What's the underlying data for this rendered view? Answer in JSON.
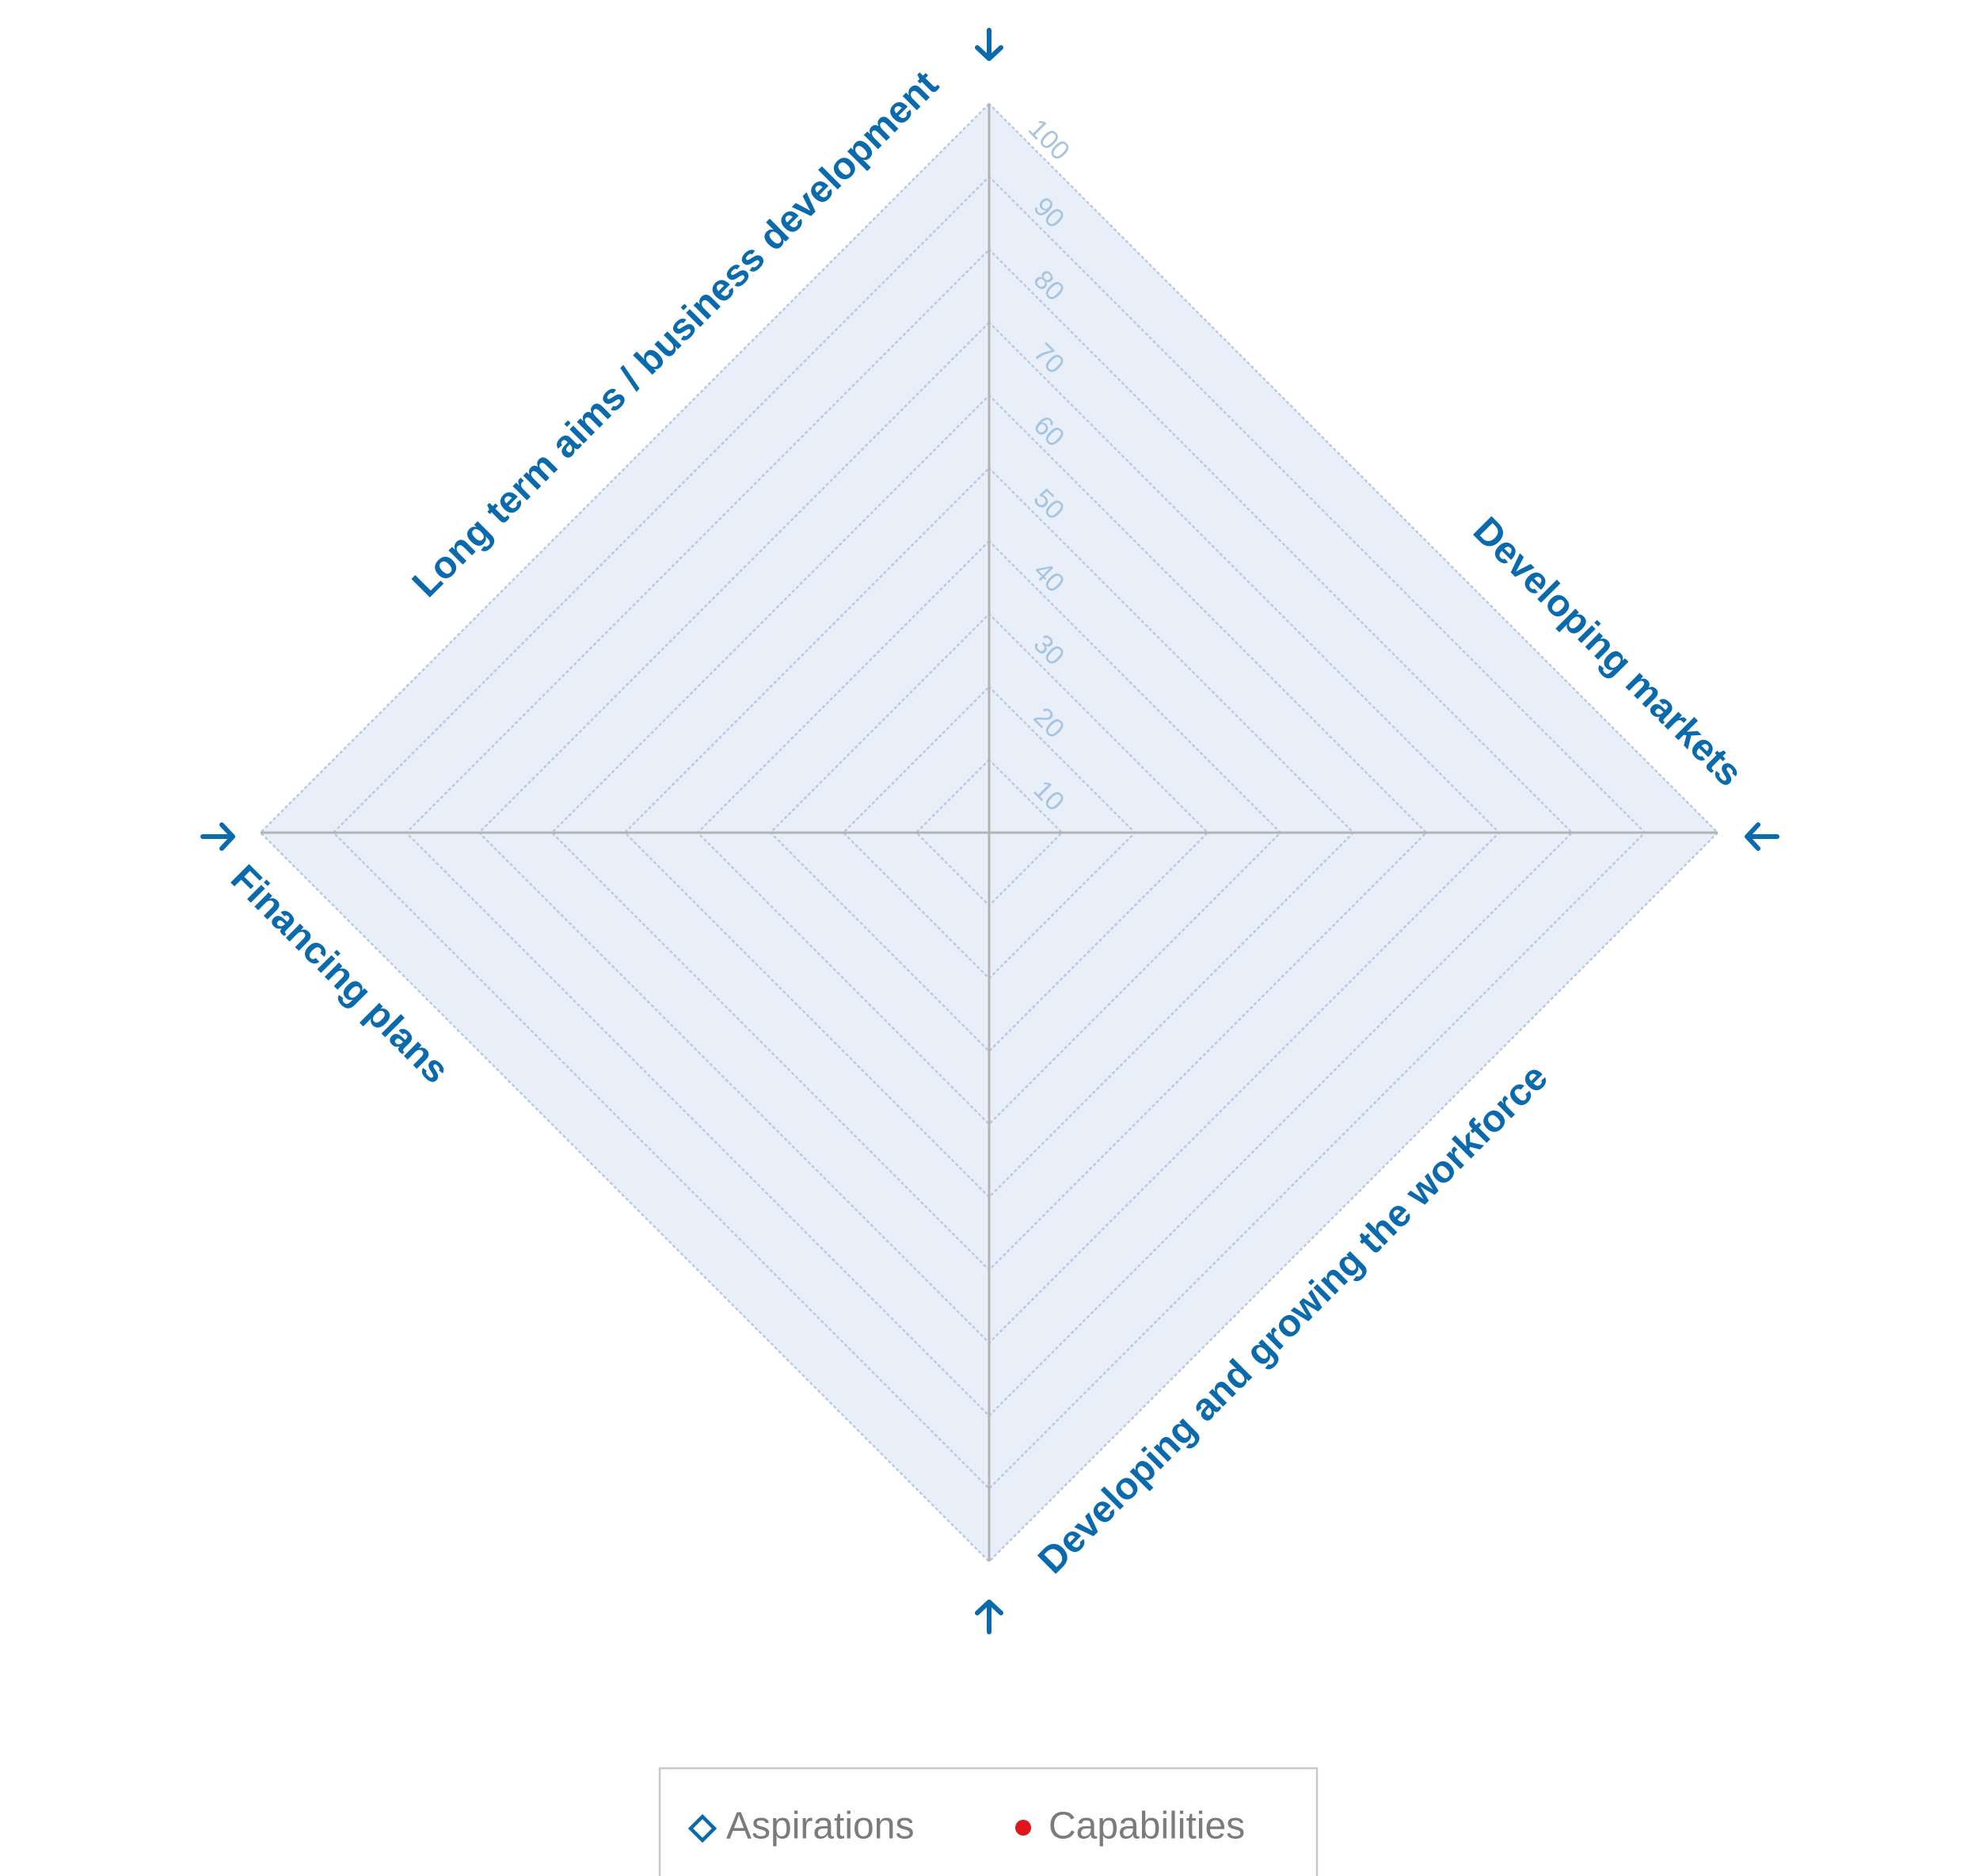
{
  "chart_data": {
    "type": "radar",
    "axes": [
      {
        "name": "Long term aims / business development"
      },
      {
        "name": "Developing markets"
      },
      {
        "name": "Developing and growing the workforce"
      },
      {
        "name": "Financing plans"
      }
    ],
    "scale": {
      "min": 0,
      "max": 100,
      "step": 10
    },
    "tick_labels": [
      "10",
      "20",
      "30",
      "40",
      "50",
      "60",
      "70",
      "80",
      "90",
      "100"
    ],
    "series": [
      {
        "name": "Aspirations",
        "marker": "diamond-outline",
        "color": "#0a6aac",
        "values": []
      },
      {
        "name": "Capabilities",
        "marker": "dot",
        "color": "#e2151e",
        "values": []
      }
    ],
    "grid": true,
    "legend_position": "bottom",
    "colors": {
      "plot_fill": "#e8eff9",
      "grid": "#b9c9e3",
      "axis_line": "#b3b3b3",
      "axis_title": "#0a6aac",
      "tick": "#a7c4e0",
      "legend_text": "#7b7b7b",
      "legend_border": "#c8c8c8"
    }
  }
}
